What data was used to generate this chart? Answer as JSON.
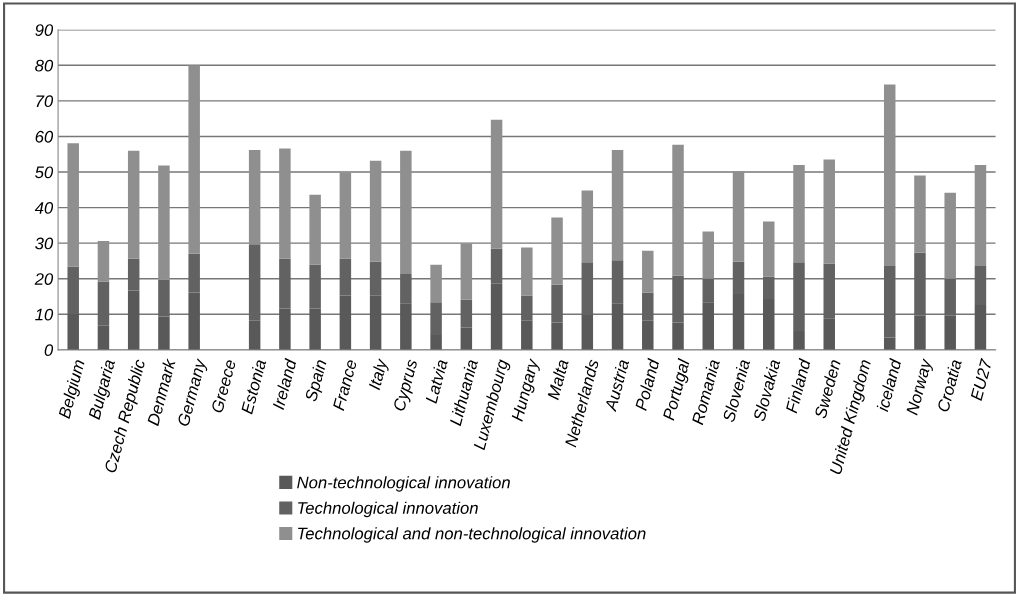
{
  "chart_data": {
    "type": "bar",
    "stacked": true,
    "categories": [
      "Belgium",
      "Bulgaria",
      "Czech Republic",
      "Denmark",
      "Germany",
      "Greece",
      "Estonia",
      "Ireland",
      "Spain",
      "France",
      "Italy",
      "Cyprus",
      "Latvia",
      "Lithuania",
      "Luxembourg",
      "Hungary",
      "Malta",
      "Netherlands",
      "Austria",
      "Poland",
      "Portugal",
      "Romania",
      "Slovenia",
      "Slovakia",
      "Finland",
      "Sweden",
      "United Kingdom",
      "iceland",
      "Norway",
      "Croatia",
      "EU27"
    ],
    "series": [
      {
        "name": "Non-technological innovation",
        "color": "#595959",
        "values": [
          10.1,
          6.8,
          16.7,
          9.4,
          16.1,
          null,
          8.2,
          11.6,
          11.6,
          15.3,
          15.2,
          13.1,
          4.2,
          6.3,
          18.6,
          8.2,
          7.7,
          9.8,
          13.1,
          8.2,
          7.7,
          13.4,
          15.7,
          14.3,
          5.3,
          8.9,
          null,
          3.5,
          9.6,
          9.6,
          12.6
        ]
      },
      {
        "name": "Technological innovation",
        "color": "#626262",
        "values": [
          13.3,
          12.4,
          8.9,
          10.3,
          10.9,
          null,
          21.5,
          14,
          12.4,
          10.3,
          9.6,
          8.2,
          9.2,
          7.8,
          9.9,
          7.1,
          10.6,
          14.8,
          12.1,
          7.9,
          13.2,
          6.6,
          9.1,
          6.3,
          19.3,
          15.4,
          null,
          20.1,
          17.7,
          10.4,
          11
        ]
      },
      {
        "name": "Technological and non-technological innovation",
        "color": "#8f8f8f",
        "values": [
          34.7,
          11.4,
          30.4,
          32.1,
          53,
          null,
          26.5,
          31,
          19.6,
          24.3,
          28.4,
          34.7,
          10.5,
          15.8,
          36.2,
          13.5,
          18.9,
          20.2,
          31,
          11.8,
          36.8,
          13.3,
          25.4,
          15.5,
          27.4,
          29.2,
          null,
          51,
          21.7,
          24.2,
          28.4
        ]
      }
    ],
    "ylim": [
      0,
      90
    ],
    "yticks": [
      0,
      10,
      20,
      30,
      40,
      50,
      60,
      70,
      80,
      90
    ],
    "grid": "y",
    "legend": "bottom"
  }
}
